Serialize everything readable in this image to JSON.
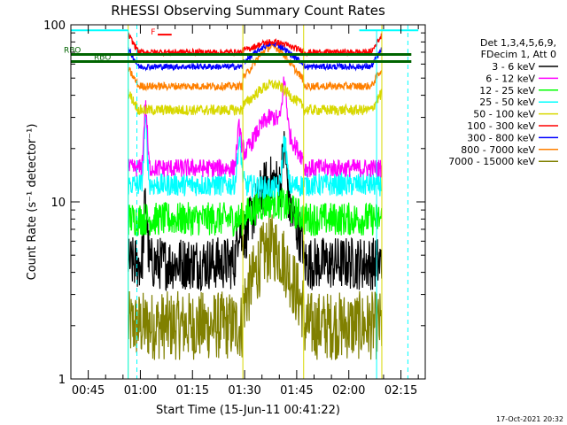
{
  "chart_data": {
    "type": "line",
    "title": "RHESSI Observing Summary Count Rates",
    "xlabel": "Start Time (15-Jun-11 00:41:22)",
    "ylabel": "Count Rate (s⁻¹ detector⁻¹)",
    "y_scale": "log",
    "ylim": [
      1,
      100
    ],
    "xlim_minutes": [
      40,
      142
    ],
    "x_ticks": [
      {
        "label": "00:45",
        "minutes": 45
      },
      {
        "label": "01:00",
        "minutes": 60
      },
      {
        "label": "01:15",
        "minutes": 75
      },
      {
        "label": "01:30",
        "minutes": 90
      },
      {
        "label": "01:45",
        "minutes": 105
      },
      {
        "label": "02:00",
        "minutes": 120
      },
      {
        "label": "02:15",
        "minutes": 135
      }
    ],
    "y_ticks": [
      {
        "label": "1",
        "value": 1
      },
      {
        "label": "10",
        "value": 10
      },
      {
        "label": "100",
        "value": 100
      }
    ],
    "legend_header": [
      "Det 1,3,4,5,6,9,",
      "FDecim 1, Att 0"
    ],
    "series": [
      {
        "name": "3 - 6 keV",
        "color": "#000000"
      },
      {
        "name": "6 - 12 keV",
        "color": "#ff00ff"
      },
      {
        "name": "12 - 25 keV",
        "color": "#00ff00"
      },
      {
        "name": "25 - 50 keV",
        "color": "#00ffff"
      },
      {
        "name": "50 - 100 keV",
        "color": "#d8d800"
      },
      {
        "name": "100 - 300 keV",
        "color": "#ff0000"
      },
      {
        "name": "300 - 800 keV",
        "color": "#0000ff"
      },
      {
        "name": "800 - 7000 keV",
        "color": "#ff8000"
      },
      {
        "name": "7000 - 15000 keV",
        "color": "#808000"
      }
    ],
    "approx_levels": {
      "7000 - 15000 keV": {
        "quiet": 2.0,
        "peak": 5.5
      },
      "3 - 6 keV": {
        "quiet": 4.5,
        "peak": 13
      },
      "12 - 25 keV": {
        "quiet": 8.0,
        "peak": 10
      },
      "25 - 50 keV": {
        "quiet": 12.5,
        "peak": 12
      },
      "6 - 12 keV": {
        "quiet": 15.5,
        "peak": 30
      },
      "50 - 100 keV": {
        "quiet": 33,
        "peak": 46
      },
      "800 - 7000 keV": {
        "quiet": 45,
        "peak": 75
      },
      "300 - 800 keV": {
        "quiet": 58,
        "peak": 78
      },
      "100 - 300 keV": {
        "quiet": 70,
        "peak": 80
      }
    },
    "annotations": {
      "flags": [
        {
          "label": "RBO",
          "color": "#006400",
          "level": 68
        },
        {
          "label": "RBO",
          "color": "#006400",
          "level": 62
        }
      ],
      "flag_char": "F"
    },
    "footer_date": "17-Oct-2021 20:32"
  }
}
